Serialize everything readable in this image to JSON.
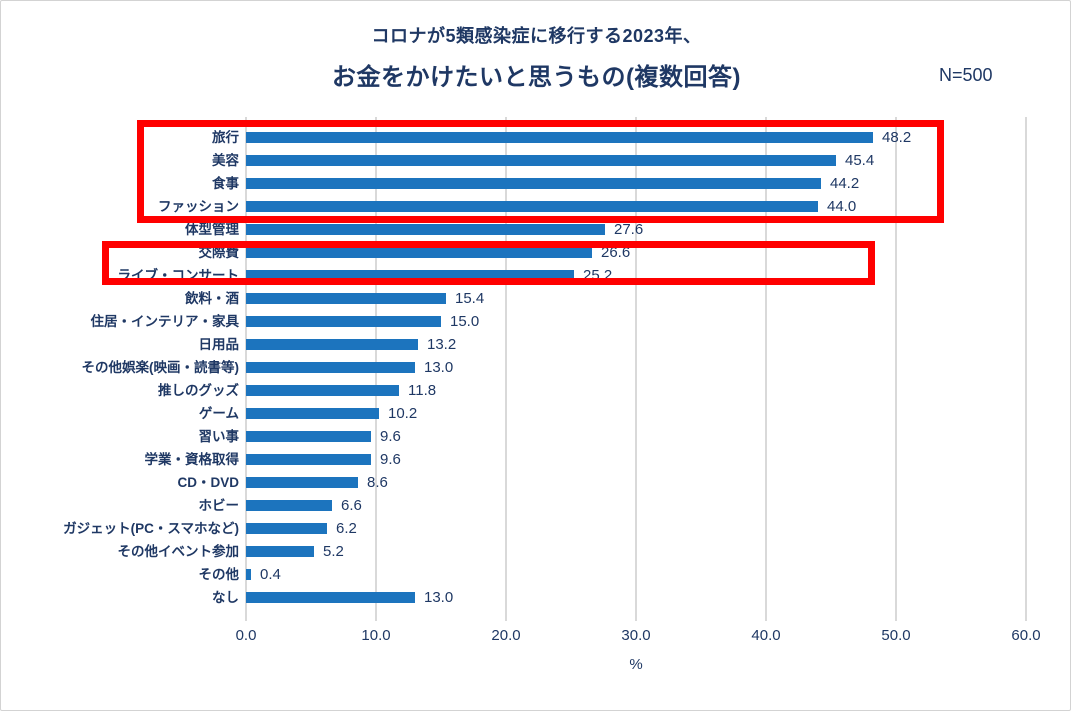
{
  "header": {
    "subtitle": "コロナが5類感染症に移行する2023年、",
    "title": "お金をかけたいと思うもの(複数回答)",
    "sample_size": "N=500"
  },
  "chart_data": {
    "type": "bar",
    "orientation": "horizontal",
    "title": "お金をかけたいと思うもの(複数回答)",
    "subtitle": "コロナが5類感染症に移行する2023年、",
    "sample_note": "N=500",
    "categories": [
      "旅行",
      "美容",
      "食事",
      "ファッション",
      "体型管理",
      "交際費",
      "ライブ・コンサート",
      "飲料・酒",
      "住居・インテリア・家具",
      "日用品",
      "その他娯楽(映画・読書等)",
      "推しのグッズ",
      "ゲーム",
      "習い事",
      "学業・資格取得",
      "CD・DVD",
      "ホビー",
      "ガジェット(PC・スマホなど)",
      "その他イベント参加",
      "その他",
      "なし"
    ],
    "values": [
      48.2,
      45.4,
      44.2,
      44.0,
      27.6,
      26.6,
      25.2,
      15.4,
      15.0,
      13.2,
      13.0,
      11.8,
      10.2,
      9.6,
      9.6,
      8.6,
      6.6,
      6.2,
      5.2,
      0.4,
      13.0
    ],
    "value_labels": [
      "48.2",
      "45.4",
      "44.2",
      "44.0",
      "27.6",
      "26.6",
      "25.2",
      "15.4",
      "15.0",
      "13.2",
      "13.0",
      "11.8",
      "10.2",
      "9.6",
      "9.6",
      "8.6",
      "6.6",
      "6.2",
      "5.2",
      "0.4",
      "13.0"
    ],
    "xlabel": "%",
    "xlim": [
      0,
      60
    ],
    "xtick_labels": [
      "0.0",
      "10.0",
      "20.0",
      "30.0",
      "40.0",
      "50.0",
      "60.0"
    ],
    "grid": true,
    "legend": "none",
    "bar_color": "#1C74BE",
    "text_color": "#1F3864",
    "gridline_color": "#D9D9D9",
    "highlight_color": "#FF0000",
    "highlights": [
      {
        "label": "top-4-items",
        "categories": [
          "旅行",
          "美容",
          "食事",
          "ファッション"
        ]
      },
      {
        "label": "kosaihi-and-live-concert",
        "categories": [
          "交際費",
          "ライブ・コンサート"
        ]
      }
    ]
  }
}
